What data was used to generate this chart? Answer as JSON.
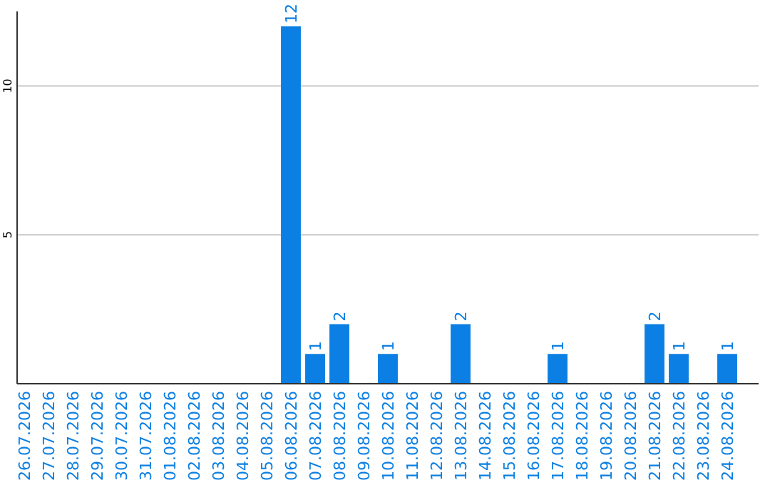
{
  "chart_data": {
    "type": "bar",
    "categories": [
      "26.07.2026",
      "27.07.2026",
      "28.07.2026",
      "29.07.2026",
      "30.07.2026",
      "31.07.2026",
      "01.08.2026",
      "02.08.2026",
      "03.08.2026",
      "04.08.2026",
      "05.08.2026",
      "06.08.2026",
      "07.08.2026",
      "08.08.2026",
      "09.08.2026",
      "10.08.2026",
      "11.08.2026",
      "12.08.2026",
      "13.08.2026",
      "14.08.2026",
      "15.08.2026",
      "16.08.2026",
      "17.08.2026",
      "18.08.2026",
      "19.08.2026",
      "20.08.2026",
      "21.08.2026",
      "22.08.2026",
      "23.08.2026",
      "24.08.2026"
    ],
    "values": [
      0,
      0,
      0,
      0,
      0,
      0,
      0,
      0,
      0,
      0,
      0,
      12,
      1,
      2,
      0,
      1,
      0,
      0,
      2,
      0,
      0,
      0,
      1,
      0,
      0,
      0,
      2,
      1,
      0,
      1
    ],
    "value_labels": [
      null,
      null,
      null,
      null,
      null,
      null,
      null,
      null,
      null,
      null,
      null,
      "12",
      "1",
      "2",
      null,
      "1",
      null,
      null,
      "2",
      null,
      null,
      null,
      "1",
      null,
      null,
      null,
      "2",
      "1",
      null,
      "1"
    ],
    "color": "#0b7fe3",
    "ylim": [
      0,
      12.5
    ],
    "yticks": [
      5,
      10
    ],
    "grid": "y"
  }
}
